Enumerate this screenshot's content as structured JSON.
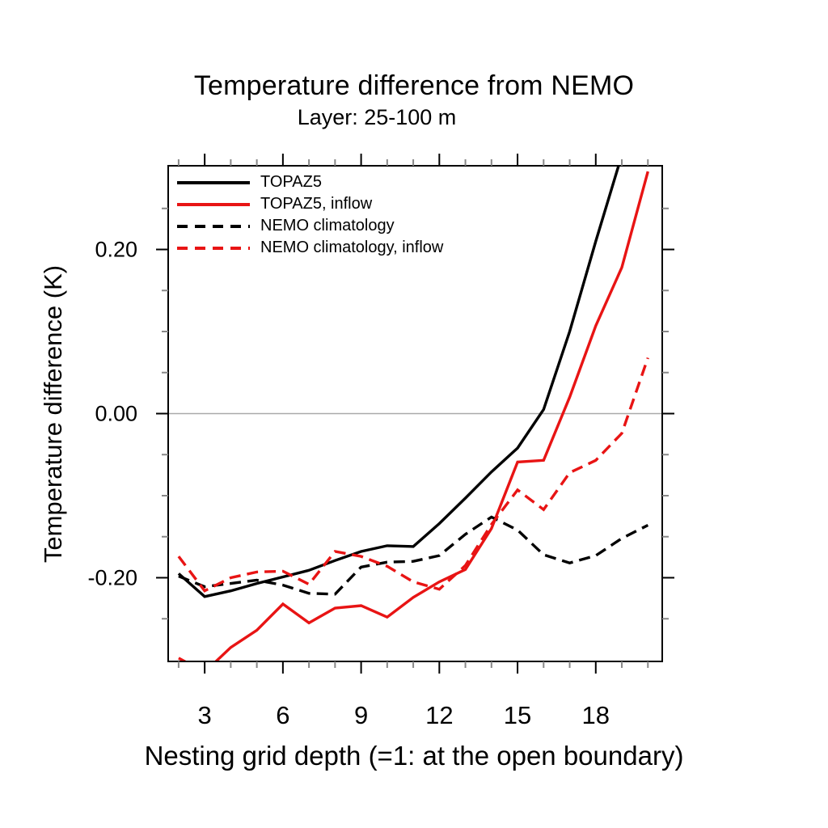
{
  "title": "Temperature difference from NEMO",
  "subtitle": "Layer: 25-100 m",
  "colors": {
    "black_series": "#000000",
    "red_series": "#e81414",
    "zero_line": "#aaaaaa",
    "frame": "#000000",
    "major_tick": "#000000",
    "minor_tick": "#888888",
    "background": "#ffffff"
  },
  "legend": {
    "items": [
      "TOPAZ5",
      "TOPAZ5, inflow",
      "NEMO climatology",
      "NEMO climatology, inflow"
    ]
  },
  "chart_data": {
    "type": "line",
    "title": "Temperature difference from NEMO",
    "subtitle": "Layer: 25-100 m",
    "xlabel": "Nesting grid depth (=1: at the open boundary)",
    "ylabel": "Temperature difference (K)",
    "xlim": [
      1.6,
      20.55
    ],
    "ylim": [
      -0.302,
      0.302
    ],
    "x_major_ticks": [
      3,
      6,
      9,
      12,
      15,
      18
    ],
    "x_major_tick_labels": [
      "3",
      "6",
      "9",
      "12",
      "15",
      "18"
    ],
    "x_minor_ticks": [
      2,
      4,
      5,
      7,
      8,
      10,
      11,
      13,
      14,
      16,
      17,
      19,
      20
    ],
    "y_major_ticks": [
      0.2,
      0.0,
      -0.2
    ],
    "y_major_tick_labels": [
      "0.20",
      "0.00",
      "-0.20"
    ],
    "y_minor_ticks": [
      -0.25,
      -0.15,
      -0.1,
      -0.05,
      0.05,
      0.1,
      0.15,
      0.25
    ],
    "zero_line": true,
    "grid": false,
    "legend_position": "upper-left-inside",
    "x": [
      2,
      3,
      4,
      5,
      6,
      7,
      8,
      9,
      10,
      11,
      12,
      13,
      14,
      15,
      16,
      17,
      18,
      19,
      20
    ],
    "series": [
      {
        "name": "TOPAZ5",
        "color": "#000000",
        "style": "solid",
        "values": [
          -0.195,
          -0.223,
          -0.216,
          -0.207,
          -0.199,
          -0.191,
          -0.179,
          -0.168,
          -0.161,
          -0.162,
          -0.134,
          -0.103,
          -0.071,
          -0.042,
          0.005,
          0.1,
          0.21,
          0.315,
          null
        ]
      },
      {
        "name": "TOPAZ5, inflow",
        "color": "#e81414",
        "style": "solid",
        "values": [
          -0.298,
          -0.315,
          -0.285,
          -0.264,
          -0.232,
          -0.255,
          -0.237,
          -0.234,
          -0.248,
          -0.224,
          -0.205,
          -0.19,
          -0.14,
          -0.059,
          -0.057,
          0.02,
          0.107,
          0.178,
          0.295
        ]
      },
      {
        "name": "NEMO climatology",
        "color": "#000000",
        "style": "dashed",
        "values": [
          -0.198,
          -0.211,
          -0.207,
          -0.203,
          -0.209,
          -0.219,
          -0.22,
          -0.187,
          -0.181,
          -0.18,
          -0.173,
          -0.147,
          -0.126,
          -0.142,
          -0.172,
          -0.182,
          -0.173,
          -0.152,
          -0.136
        ]
      },
      {
        "name": "NEMO climatology, inflow",
        "color": "#e81414",
        "style": "dashed",
        "values": [
          -0.174,
          -0.216,
          -0.2,
          -0.193,
          -0.192,
          -0.208,
          -0.168,
          -0.174,
          -0.186,
          -0.205,
          -0.214,
          -0.185,
          -0.135,
          -0.093,
          -0.117,
          -0.072,
          -0.057,
          -0.024,
          0.068
        ]
      }
    ]
  }
}
